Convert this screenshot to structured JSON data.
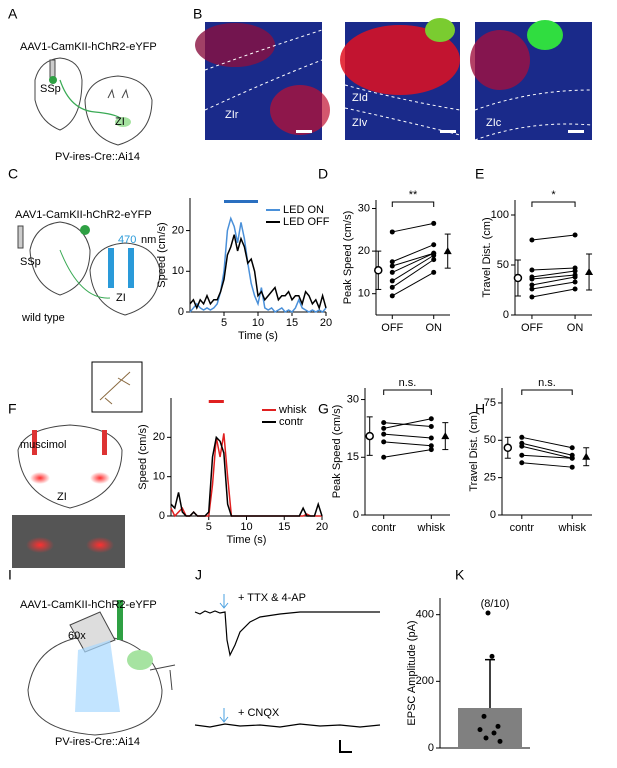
{
  "figure": {
    "panel_labels": [
      "A",
      "B",
      "C",
      "D",
      "E",
      "F",
      "G",
      "H",
      "I",
      "J",
      "K"
    ],
    "a": {
      "virus": "AAV1-CamKII-hChR2-eYFP",
      "region1": "SSp",
      "region2": "ZI",
      "mouse": "PV-ires-Cre::Ai14"
    },
    "b": {
      "labels": [
        "ZIr",
        "ZId",
        "ZIv",
        "ZIc"
      ]
    },
    "c": {
      "virus": "AAV1-CamKII-hChR2-eYFP",
      "wavelength": "470",
      "wavelength_unit": "nm",
      "region1": "SSp",
      "region2": "ZI",
      "mouse": "wild type"
    },
    "f": {
      "drug": "muscimol",
      "region": "ZI"
    },
    "i": {
      "virus": "AAV1-CamKII-hChR2-eYFP",
      "objective": "60x",
      "mouse": "PV-ires-Cre::Ai14"
    },
    "j": {
      "condition1": "+ TTX & 4-AP",
      "condition2": "+ CNQX"
    }
  },
  "chart_data": [
    {
      "type": "line",
      "xlabel": "Time (s)",
      "ylabel": "Speed (cm/s)",
      "xlim": [
        0,
        20
      ],
      "ylim": [
        0,
        28
      ],
      "xticks": [
        5,
        10,
        15,
        20
      ],
      "yticks": [
        0,
        10,
        20
      ],
      "legend": "top-right",
      "stimulus": [
        5,
        10
      ],
      "stimulus_color": "#2a6fc0",
      "x": [
        0,
        0.5,
        1,
        1.5,
        2,
        2.5,
        3,
        3.5,
        4,
        4.5,
        5,
        5.5,
        6,
        6.5,
        7,
        7.5,
        8,
        8.5,
        9,
        9.5,
        10,
        10.5,
        11,
        11.5,
        12,
        12.5,
        13,
        13.5,
        14,
        14.5,
        15,
        15.5,
        16,
        16.5,
        17,
        17.5,
        18,
        18.5,
        19,
        19.5,
        20
      ],
      "series": [
        {
          "name": "LED ON",
          "color": "#4a90d9",
          "values": [
            0,
            1,
            2,
            1,
            0.5,
            1,
            0.5,
            1,
            2,
            5,
            10,
            20,
            23,
            21,
            17,
            22,
            18,
            12,
            7,
            4,
            2,
            6,
            1,
            0.5,
            1,
            0,
            0.5,
            1,
            0,
            0.5,
            0,
            1,
            3,
            1,
            0.5,
            0,
            0.5,
            0,
            0.5,
            0,
            1
          ]
        },
        {
          "name": "LED OFF",
          "color": "#000000",
          "values": [
            2,
            3,
            1,
            3,
            2,
            4,
            2,
            3,
            3,
            5,
            8,
            14,
            16,
            19,
            15,
            18,
            16,
            12,
            13,
            10,
            4,
            5,
            3,
            4,
            5,
            6,
            3,
            4,
            4,
            5,
            3,
            4,
            4,
            2,
            5,
            4,
            2,
            3,
            1,
            4,
            1
          ]
        }
      ]
    },
    {
      "type": "paired",
      "ylabel": "Peak Speed (cm/s)",
      "categories": [
        "OFF",
        "ON"
      ],
      "ylim": [
        5,
        32
      ],
      "yticks": [
        10,
        20,
        30
      ],
      "significance": "**",
      "pairs": [
        [
          24.5,
          26.5
        ],
        [
          17.5,
          21.5
        ],
        [
          16.5,
          19.5
        ],
        [
          15,
          19.5
        ],
        [
          13,
          19
        ],
        [
          11.5,
          18
        ],
        [
          9.5,
          15
        ]
      ],
      "mean": [
        15.5,
        20
      ],
      "error": [
        4.5,
        4
      ]
    },
    {
      "type": "paired",
      "ylabel": "Travel Dist. (cm)",
      "categories": [
        "OFF",
        "ON"
      ],
      "ylim": [
        0,
        115
      ],
      "yticks": [
        0,
        50,
        100
      ],
      "significance": "*",
      "pairs": [
        [
          75,
          80
        ],
        [
          45,
          47
        ],
        [
          38,
          44
        ],
        [
          36,
          40
        ],
        [
          30,
          38
        ],
        [
          26,
          33
        ],
        [
          18,
          26
        ]
      ],
      "mean": [
        37,
        43
      ],
      "error": [
        18,
        18
      ]
    },
    {
      "type": "line",
      "xlabel": "Time (s)",
      "ylabel": "Speed (cm/s)",
      "xlim": [
        0,
        20
      ],
      "ylim": [
        0,
        30
      ],
      "xticks": [
        5,
        10,
        15,
        20
      ],
      "yticks": [
        0,
        10,
        20
      ],
      "legend": "top-right",
      "stimulus": [
        5,
        7
      ],
      "stimulus_color": "#e02020",
      "x": [
        0,
        0.5,
        1,
        1.5,
        2,
        2.5,
        3,
        3.5,
        4,
        4.5,
        5,
        5.5,
        6,
        6.5,
        7,
        7.5,
        8,
        8.5,
        9,
        9.5,
        10,
        10.5,
        11,
        11.5,
        12,
        12.5,
        13,
        13.5,
        14,
        14.5,
        15,
        15.5,
        16,
        16.5,
        17,
        17.5,
        18,
        18.5,
        19,
        19.5,
        20
      ],
      "series": [
        {
          "name": "whisk",
          "color": "#e02020",
          "values": [
            2,
            0,
            1,
            2,
            0,
            0,
            1,
            0,
            0,
            0,
            0,
            8,
            20,
            15,
            21,
            10,
            0,
            0,
            0,
            0,
            0,
            0,
            0,
            0,
            0,
            0,
            0,
            0,
            0,
            0,
            0,
            0,
            0,
            0,
            0,
            0,
            0.5,
            0,
            0,
            0,
            0
          ]
        },
        {
          "name": "contr",
          "color": "#000000",
          "values": [
            3,
            2,
            6,
            1,
            0,
            0,
            1,
            0,
            0,
            0,
            1,
            15,
            20,
            19,
            16,
            3,
            0,
            0,
            0,
            0,
            0,
            0,
            0,
            0,
            0,
            0,
            0,
            0,
            0,
            0,
            0,
            0,
            0,
            0,
            0,
            2,
            0,
            0,
            0,
            3,
            0
          ]
        }
      ]
    },
    {
      "type": "paired",
      "ylabel": "Peak Speed (cm/s)",
      "categories": [
        "contr",
        "whisk"
      ],
      "ylim": [
        0,
        33
      ],
      "yticks": [
        0,
        15,
        30
      ],
      "significance": "n.s.",
      "pairs": [
        [
          24,
          23
        ],
        [
          22.5,
          25
        ],
        [
          21,
          20
        ],
        [
          19,
          18
        ],
        [
          15,
          17
        ]
      ],
      "mean": [
        20.5,
        20.5
      ],
      "error": [
        5,
        3.5
      ]
    },
    {
      "type": "paired",
      "ylabel": "Travel Dist. (cm)",
      "categories": [
        "contr",
        "whisk"
      ],
      "ylim": [
        0,
        85
      ],
      "yticks": [
        0,
        25,
        50,
        75
      ],
      "significance": "n.s.",
      "pairs": [
        [
          52,
          45
        ],
        [
          48,
          40
        ],
        [
          46,
          38
        ],
        [
          40,
          38
        ],
        [
          35,
          32
        ]
      ],
      "mean": [
        45,
        39
      ],
      "error": [
        7,
        6
      ]
    },
    {
      "type": "bar",
      "ylabel": "EPSC Amplitude (pA)",
      "annotation": "(8/10)",
      "ylim": [
        0,
        450
      ],
      "yticks": [
        0,
        200,
        400
      ],
      "color": "#808080",
      "values": [
        120
      ],
      "error": [
        145
      ],
      "points": [
        405,
        275,
        95,
        65,
        55,
        45,
        30,
        20
      ]
    }
  ]
}
